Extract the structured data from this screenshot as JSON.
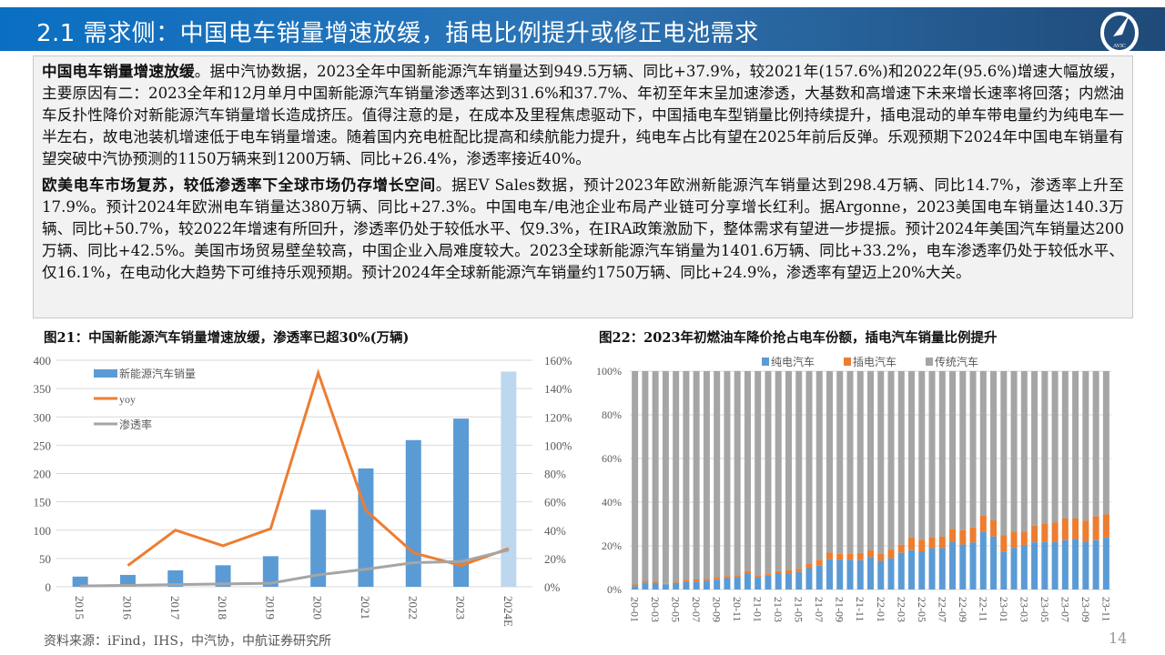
{
  "header": {
    "title": "2.1 需求侧：中国电车销量增速放缓，插电比例提升或修正电池需求",
    "logo_text": "AVIC"
  },
  "body": {
    "p1_bold": "中国电车销量增速放缓",
    "p1": "。据中汽协数据，2023全年中国新能源汽车销量达到949.5万辆、同比+37.9%，较2021年(157.6%)和2022年(95.6%)增速大幅放缓，主要原因有二：2023全年和12月单月中国新能源汽车销量渗透率达到31.6%和37.7%、年初至年末呈加速渗透，大基数和高增速下未来增长速率将回落；内燃油车反扑性降价对新能源汽车销量增长造成挤压。值得注意的是，在成本及里程焦虑驱动下，中国插电车型销量比例持续提升，插电混动的单车带电量约为纯电车一半左右，故电池装机增速低于电车销量增速。随着国内充电桩配比提高和续航能力提升，纯电车占比有望在2025年前后反弹。乐观预期下2024年中国电车销量有望突破中汽协预测的1150万辆来到1200万辆、同比+26.4%，渗透率接近40%。",
    "p2_bold": "欧美电车市场复苏，较低渗透率下全球市场仍存增长空间",
    "p2": "。据EV Sales数据，预计2023年欧洲新能源汽车销量达到298.4万辆、同比14.7%，渗透率上升至17.9%。预计2024年欧洲电车销量达380万辆、同比+27.3%。中国电车/电池企业布局产业链可分享增长红利。据Argonne，2023美国电车销量达140.3万辆、同比+50.7%，较2022年增速有所回升，渗透率仍处于较低水平、仅9.3%，在IRA政策激励下，整体需求有望进一步提振。预计2024年美国汽车销量达200万辆、同比+42.5%。美国市场贸易壁垒较高，中国企业入局难度较大。2023全球新能源汽车销量为1401.6万辆、同比+33.2%，电车渗透率仍处于较低水平、仅16.1%，在电动化大趋势下可维持乐观预期。预计2024年全球新能源汽车销量约1750万辆、同比+24.9%，渗透率有望迈上20%大关。"
  },
  "chart_data": [
    {
      "type": "bar+line",
      "title": "图21：中国新能源汽车销量增速放缓，渗透率已超30%(万辆)",
      "categories": [
        "2015",
        "2016",
        "2017",
        "2018",
        "2019",
        "2020",
        "2021",
        "2022",
        "2023",
        "2024E"
      ],
      "series": [
        {
          "name": "新能源汽车销量",
          "axis": "left",
          "type": "bar",
          "color": "#5b9bd5",
          "values": [
            18,
            21,
            29,
            38,
            54,
            136,
            209,
            259,
            297,
            380
          ]
        },
        {
          "name": "yoy",
          "axis": "right",
          "type": "line",
          "color": "#ed7d31",
          "values": [
            null,
            15,
            40,
            29,
            41,
            151,
            54,
            24,
            15,
            27
          ]
        },
        {
          "name": "渗透率",
          "axis": "right",
          "type": "line",
          "color": "#a5a5a5",
          "values": [
            0.6,
            1,
            1.5,
            2,
            2.5,
            8.4,
            12.4,
            17,
            17.8,
            26
          ]
        }
      ],
      "left_ylim": [
        0,
        400
      ],
      "left_ticks": [
        "0",
        "50",
        "100",
        "150",
        "200",
        "250",
        "300",
        "350",
        "400"
      ],
      "right_ylim": [
        0,
        160
      ],
      "right_ticks": [
        "0%",
        "20%",
        "40%",
        "60%",
        "80%",
        "100%",
        "120%",
        "140%",
        "160%"
      ],
      "legend": "top-left",
      "grid": true
    },
    {
      "type": "stacked-bar",
      "title": "图22：2023年初燃油车降价抢占电车份额，插电汽车销量比例提升",
      "months": [
        "20-01",
        "20-02",
        "20-03",
        "20-04",
        "20-05",
        "20-06",
        "20-07",
        "20-08",
        "20-09",
        "20-10",
        "20-11",
        "20-12",
        "21-01",
        "21-02",
        "21-03",
        "21-04",
        "21-05",
        "21-06",
        "21-07",
        "21-08",
        "21-09",
        "21-10",
        "21-11",
        "21-12",
        "22-01",
        "22-02",
        "22-03",
        "22-04",
        "22-05",
        "22-06",
        "22-07",
        "22-08",
        "22-09",
        "22-10",
        "22-11",
        "22-12",
        "23-01",
        "23-02",
        "23-03",
        "23-04",
        "23-05",
        "23-06",
        "23-07",
        "23-08",
        "23-09",
        "23-10",
        "23-11"
      ],
      "series": [
        {
          "name": "纯电汽车",
          "color": "#5b9bd5",
          "values": [
            1.5,
            3.2,
            3,
            2.4,
            3,
            3.6,
            3.7,
            4,
            4.5,
            5.2,
            5.7,
            7.3,
            5.7,
            6.3,
            7.3,
            7.3,
            8,
            9.8,
            10.9,
            13.9,
            13.6,
            13.6,
            13.4,
            14.9,
            13.1,
            14.2,
            16.8,
            18,
            17.5,
            19,
            19,
            21.9,
            20.6,
            21.5,
            26.4,
            24.3,
            17.4,
            19,
            20,
            21.6,
            21.8,
            21.7,
            22.6,
            23.1,
            21.9,
            22.6,
            23.7
          ]
        },
        {
          "name": "插电汽车",
          "color": "#ed7d31",
          "values": [
            0.8,
            0.8,
            0.8,
            0.2,
            0.7,
            0.9,
            0.9,
            0.9,
            0.9,
            0.9,
            0.9,
            1.2,
            0.9,
            0.9,
            1.1,
            1.6,
            1.5,
            2,
            2.7,
            3,
            2.7,
            2.7,
            3.3,
            3,
            3.2,
            4.1,
            3.7,
            5.9,
            5.3,
            4.9,
            5.3,
            5.9,
            6.6,
            6.9,
            7.4,
            7.4,
            7.4,
            7.5,
            6.5,
            7.6,
            8.2,
            8.9,
            9.9,
            9.4,
            9.6,
            10.9,
            10.7
          ]
        },
        {
          "name": "传统汽车",
          "color": "#a5a5a5",
          "values": "remainder to 100%"
        }
      ],
      "ylim": [
        0,
        100
      ],
      "y_ticks": [
        "0%",
        "20%",
        "40%",
        "60%",
        "80%",
        "100%"
      ],
      "x_ticks": [
        "20-01",
        "20-03",
        "20-05",
        "20-07",
        "20-09",
        "20-11",
        "21-01",
        "21-03",
        "21-05",
        "21-07",
        "21-09",
        "21-11",
        "22-01",
        "22-03",
        "22-05",
        "22-07",
        "22-09",
        "22-11",
        "23-01",
        "23-03",
        "23-05",
        "23-07",
        "23-09",
        "23-11"
      ],
      "legend": "top",
      "grid": true
    }
  ],
  "footer": {
    "source": "资料来源：iFind，IHS，中汽协，中航证券研究所",
    "page": "14"
  }
}
